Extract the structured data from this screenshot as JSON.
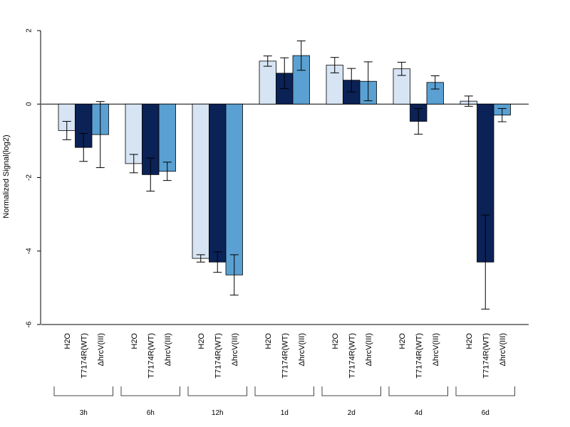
{
  "chart_data": {
    "type": "bar",
    "title": "",
    "xlabel": "",
    "ylabel": "Normalized Signal(log2)",
    "ylim": [
      -6,
      2
    ],
    "yticks": [
      2,
      0,
      -2,
      -4,
      -6
    ],
    "grid": false,
    "legend": "none",
    "groups": [
      "3h",
      "6h",
      "12h",
      "1d",
      "2d",
      "4d",
      "6d"
    ],
    "bar_labels": [
      "H2O",
      "T7174R(WT)",
      "ΔhrcV(III)"
    ],
    "series": [
      {
        "color": "#d6e4f3",
        "values": [
          -0.72,
          -1.62,
          -4.2,
          1.17,
          1.06,
          0.96,
          0.08
        ],
        "error": [
          0.25,
          0.25,
          0.1,
          0.14,
          0.21,
          0.18,
          0.14
        ]
      },
      {
        "color": "#0b2257",
        "values": [
          -1.18,
          -1.92,
          -4.3,
          0.84,
          0.65,
          -0.47,
          -4.3
        ],
        "error": [
          0.38,
          0.45,
          0.28,
          0.42,
          0.32,
          0.35,
          1.28
        ]
      },
      {
        "color": "#5aa0d2",
        "values": [
          -0.83,
          -1.83,
          -4.65,
          1.32,
          0.62,
          0.59,
          -0.3
        ],
        "error": [
          0.9,
          0.25,
          0.55,
          0.4,
          0.53,
          0.18,
          0.18
        ]
      }
    ]
  }
}
